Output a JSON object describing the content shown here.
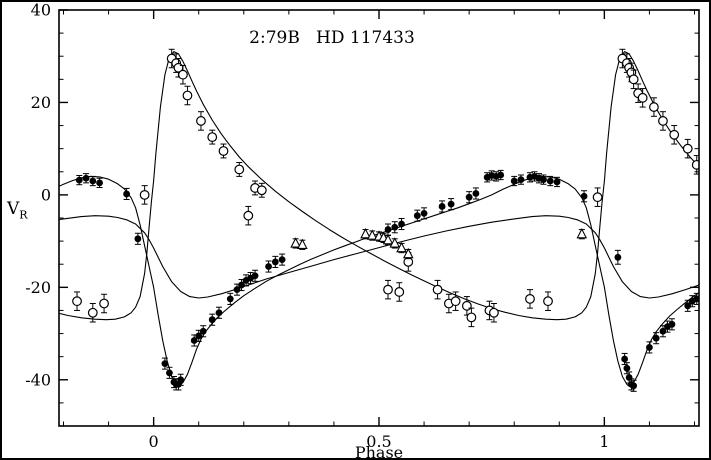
{
  "chart_data": {
    "type": "scatter",
    "title": "2:79B   HD 117433",
    "xlabel": "Phase",
    "ylabel": "V_R",
    "ylabel_main": "V",
    "ylabel_sub": "R",
    "xlim": [
      -0.21,
      1.21
    ],
    "ylim": [
      -50,
      40
    ],
    "grid": false,
    "legend": "none",
    "x_major_ticks": [
      0,
      0.5,
      1
    ],
    "x_major_labels": [
      "0",
      "0.5",
      "1"
    ],
    "x_minor_step": 0.1,
    "y_major_ticks": [
      -40,
      -20,
      0,
      20,
      40
    ],
    "y_major_labels": [
      "-40",
      "-20",
      "0",
      "20",
      "40"
    ],
    "y_minor_step": 5,
    "series": [
      {
        "name": "primary-filled-circles",
        "marker": "filled-circle",
        "points": [
          [
            -0.165,
            3.2,
            1
          ],
          [
            -0.15,
            3.6,
            1
          ],
          [
            -0.135,
            3.0,
            1
          ],
          [
            -0.12,
            2.6,
            1
          ],
          [
            -0.06,
            0.2,
            1.2
          ],
          [
            -0.035,
            -9.5,
            1.2
          ],
          [
            0.025,
            -36.5,
            1.2
          ],
          [
            0.035,
            -38.5,
            1.2
          ],
          [
            0.045,
            -40.5,
            1.2
          ],
          [
            0.05,
            -41.0,
            1.2
          ],
          [
            0.055,
            -41.0,
            1.2
          ],
          [
            0.06,
            -40.0,
            1.2
          ],
          [
            0.09,
            -31.5,
            1.2
          ],
          [
            0.1,
            -30.5,
            1.2
          ],
          [
            0.11,
            -29.5,
            1.2
          ],
          [
            0.13,
            -27.0,
            1.2
          ],
          [
            0.145,
            -25.5,
            1.2
          ],
          [
            0.17,
            -22.5,
            1.2
          ],
          [
            0.185,
            -20.5,
            1.2
          ],
          [
            0.195,
            -19.5,
            1.2
          ],
          [
            0.205,
            -18.5,
            1.2
          ],
          [
            0.215,
            -18.0,
            1.2
          ],
          [
            0.225,
            -17.5,
            1.2
          ],
          [
            0.255,
            -15.5,
            1.2
          ],
          [
            0.27,
            -14.5,
            1.2
          ],
          [
            0.285,
            -14.0,
            1.2
          ],
          [
            0.52,
            -7.5,
            1.2
          ],
          [
            0.535,
            -7.0,
            1.2
          ],
          [
            0.55,
            -6.3,
            1.2
          ],
          [
            0.585,
            -4.5,
            1.2
          ],
          [
            0.6,
            -4.0,
            1.2
          ],
          [
            0.64,
            -2.5,
            1.2
          ],
          [
            0.66,
            -2.0,
            1.2
          ],
          [
            0.7,
            -0.5,
            1.2
          ],
          [
            0.715,
            0.3,
            1.2
          ],
          [
            0.74,
            3.8,
            1
          ],
          [
            0.75,
            4.2,
            1
          ],
          [
            0.76,
            4.0,
            1
          ],
          [
            0.77,
            4.3,
            1
          ],
          [
            0.8,
            3.0,
            1
          ],
          [
            0.815,
            3.3,
            1
          ],
          [
            0.835,
            3.8,
            1
          ],
          [
            0.845,
            4.0,
            1
          ],
          [
            0.855,
            3.6,
            1
          ],
          [
            0.865,
            3.3,
            1
          ],
          [
            0.88,
            3.0,
            1
          ],
          [
            0.895,
            2.8,
            1
          ],
          [
            0.955,
            -0.3,
            1.2
          ],
          [
            1.03,
            -13.5,
            1.5
          ],
          [
            1.045,
            -35.5,
            1.2
          ],
          [
            1.05,
            -37.5,
            1.2
          ],
          [
            1.055,
            -39.5,
            1.2
          ],
          [
            1.06,
            -41.0,
            1.2
          ],
          [
            1.065,
            -41.3,
            1.2
          ],
          [
            1.1,
            -33.0,
            1.2
          ],
          [
            1.115,
            -31.0,
            1.2
          ],
          [
            1.13,
            -29.5,
            1.2
          ],
          [
            1.14,
            -28.5,
            1.2
          ],
          [
            1.15,
            -28.0,
            1.2
          ],
          [
            1.185,
            -24.0,
            1.2
          ],
          [
            1.195,
            -23.0,
            1.2
          ],
          [
            1.205,
            -22.5,
            1.2
          ]
        ]
      },
      {
        "name": "secondary-open-circles",
        "marker": "open-circle",
        "points": [
          [
            -0.17,
            -23.0,
            2
          ],
          [
            -0.135,
            -25.5,
            2
          ],
          [
            -0.11,
            -23.5,
            2
          ],
          [
            -0.02,
            0.0,
            2
          ],
          [
            0.04,
            29.5,
            2
          ],
          [
            0.05,
            28.5,
            2
          ],
          [
            0.055,
            27.5,
            2
          ],
          [
            0.065,
            26.0,
            2
          ],
          [
            0.075,
            21.5,
            2
          ],
          [
            0.105,
            16.0,
            2
          ],
          [
            0.13,
            12.5,
            1.5
          ],
          [
            0.155,
            9.5,
            1.5
          ],
          [
            0.19,
            5.5,
            1.5
          ],
          [
            0.21,
            -4.5,
            2
          ],
          [
            0.225,
            1.5,
            1.5
          ],
          [
            0.24,
            1.0,
            1.5
          ],
          [
            0.52,
            -20.5,
            2
          ],
          [
            0.545,
            -21.0,
            2
          ],
          [
            0.565,
            -14.5,
            2
          ],
          [
            0.63,
            -20.5,
            2
          ],
          [
            0.655,
            -23.5,
            2
          ],
          [
            0.67,
            -23.0,
            2
          ],
          [
            0.695,
            -24.0,
            2
          ],
          [
            0.705,
            -26.5,
            2
          ],
          [
            0.745,
            -25.0,
            2
          ],
          [
            0.755,
            -25.5,
            2
          ],
          [
            0.835,
            -22.5,
            2
          ],
          [
            0.875,
            -23.0,
            2
          ],
          [
            0.985,
            -0.5,
            2
          ],
          [
            1.04,
            29.5,
            2
          ],
          [
            1.05,
            28.5,
            2
          ],
          [
            1.055,
            27.5,
            2
          ],
          [
            1.06,
            26.5,
            2
          ],
          [
            1.065,
            25.0,
            2
          ],
          [
            1.075,
            22.0,
            2
          ],
          [
            1.085,
            21.0,
            2
          ],
          [
            1.11,
            19.0,
            2
          ],
          [
            1.13,
            16.0,
            2
          ],
          [
            1.155,
            13.0,
            2
          ],
          [
            1.185,
            10.0,
            2
          ],
          [
            1.205,
            6.5,
            2
          ]
        ]
      },
      {
        "name": "third-body-open-triangles",
        "marker": "open-triangle",
        "points": [
          [
            0.315,
            -10.5,
            1
          ],
          [
            0.33,
            -10.8,
            1
          ],
          [
            0.47,
            -8.5,
            1
          ],
          [
            0.485,
            -8.8,
            1
          ],
          [
            0.5,
            -9.0,
            1
          ],
          [
            0.51,
            -9.3,
            1
          ],
          [
            0.52,
            -9.8,
            1
          ],
          [
            0.535,
            -10.5,
            1
          ],
          [
            0.55,
            -11.5,
            1
          ],
          [
            0.565,
            -12.8,
            1
          ],
          [
            0.95,
            -8.5,
            1
          ]
        ]
      }
    ],
    "model_curves": [
      {
        "name": "primary-model",
        "period_points": [
          [
            0.0,
            -20
          ],
          [
            0.01,
            -26
          ],
          [
            0.02,
            -31.5
          ],
          [
            0.03,
            -36
          ],
          [
            0.04,
            -39.3
          ],
          [
            0.05,
            -41
          ],
          [
            0.055,
            -41.4
          ],
          [
            0.065,
            -40.6
          ],
          [
            0.075,
            -38.8
          ],
          [
            0.085,
            -36.2
          ],
          [
            0.095,
            -33.4
          ],
          [
            0.105,
            -31.2
          ],
          [
            0.115,
            -29.6
          ],
          [
            0.13,
            -27.8
          ],
          [
            0.145,
            -26.2
          ],
          [
            0.16,
            -24.9
          ],
          [
            0.18,
            -23.3
          ],
          [
            0.2,
            -21.8
          ],
          [
            0.225,
            -20.2
          ],
          [
            0.25,
            -18.7
          ],
          [
            0.275,
            -17.4
          ],
          [
            0.3,
            -16.2
          ],
          [
            0.325,
            -15.0
          ],
          [
            0.35,
            -13.9
          ],
          [
            0.375,
            -12.9
          ],
          [
            0.4,
            -11.9
          ],
          [
            0.425,
            -11.0
          ],
          [
            0.45,
            -10.1
          ],
          [
            0.475,
            -9.2
          ],
          [
            0.5,
            -8.4
          ],
          [
            0.525,
            -7.6
          ],
          [
            0.55,
            -6.8
          ],
          [
            0.575,
            -6.0
          ],
          [
            0.6,
            -5.2
          ],
          [
            0.625,
            -4.4
          ],
          [
            0.65,
            -3.6
          ],
          [
            0.675,
            -2.8
          ],
          [
            0.7,
            -1.9
          ],
          [
            0.725,
            -1.0
          ],
          [
            0.75,
            0.0
          ],
          [
            0.775,
            1.2
          ],
          [
            0.8,
            2.3
          ],
          [
            0.82,
            3.1
          ],
          [
            0.84,
            3.7
          ],
          [
            0.86,
            4.0
          ],
          [
            0.88,
            3.9
          ],
          [
            0.9,
            3.4
          ],
          [
            0.92,
            2.4
          ],
          [
            0.935,
            1.3
          ],
          [
            0.95,
            -0.6
          ],
          [
            0.96,
            -2.8
          ],
          [
            0.97,
            -6.5
          ],
          [
            0.98,
            -11.0
          ],
          [
            0.99,
            -15.5
          ]
        ]
      },
      {
        "name": "secondary-model",
        "period_points": [
          [
            0.0,
            3.0
          ],
          [
            0.005,
            9.0
          ],
          [
            0.015,
            19.0
          ],
          [
            0.025,
            26.0
          ],
          [
            0.035,
            29.8
          ],
          [
            0.045,
            31.0
          ],
          [
            0.055,
            30.5
          ],
          [
            0.065,
            28.9
          ],
          [
            0.075,
            26.8
          ],
          [
            0.085,
            24.6
          ],
          [
            0.095,
            22.5
          ],
          [
            0.11,
            19.6
          ],
          [
            0.13,
            16.2
          ],
          [
            0.15,
            13.2
          ],
          [
            0.17,
            10.6
          ],
          [
            0.19,
            8.2
          ],
          [
            0.21,
            6.1
          ],
          [
            0.24,
            3.3
          ],
          [
            0.27,
            0.8
          ],
          [
            0.3,
            -1.5
          ],
          [
            0.33,
            -3.6
          ],
          [
            0.36,
            -5.6
          ],
          [
            0.39,
            -7.5
          ],
          [
            0.42,
            -9.3
          ],
          [
            0.45,
            -11.0
          ],
          [
            0.48,
            -12.6
          ],
          [
            0.51,
            -14.2
          ],
          [
            0.54,
            -15.7
          ],
          [
            0.57,
            -17.2
          ],
          [
            0.6,
            -18.6
          ],
          [
            0.63,
            -20.0
          ],
          [
            0.66,
            -21.3
          ],
          [
            0.69,
            -22.5
          ],
          [
            0.72,
            -23.6
          ],
          [
            0.75,
            -24.6
          ],
          [
            0.78,
            -25.4
          ],
          [
            0.81,
            -26.1
          ],
          [
            0.84,
            -26.6
          ],
          [
            0.87,
            -26.9
          ],
          [
            0.895,
            -27.0
          ],
          [
            0.915,
            -26.9
          ],
          [
            0.935,
            -26.4
          ],
          [
            0.95,
            -25.5
          ],
          [
            0.96,
            -24.3
          ],
          [
            0.97,
            -22.0
          ],
          [
            0.98,
            -17.0
          ],
          [
            0.985,
            -12.5
          ],
          [
            0.99,
            -7.0
          ],
          [
            0.995,
            -1.5
          ]
        ]
      },
      {
        "name": "third-body-model",
        "period_points": [
          [
            0.0,
            -11.5
          ],
          [
            0.02,
            -15.5
          ],
          [
            0.04,
            -18.8
          ],
          [
            0.06,
            -20.9
          ],
          [
            0.08,
            -22.0
          ],
          [
            0.1,
            -22.3
          ],
          [
            0.12,
            -22.1
          ],
          [
            0.15,
            -21.4
          ],
          [
            0.18,
            -20.5
          ],
          [
            0.21,
            -19.5
          ],
          [
            0.25,
            -18.2
          ],
          [
            0.3,
            -16.8
          ],
          [
            0.35,
            -15.4
          ],
          [
            0.4,
            -14.0
          ],
          [
            0.45,
            -12.7
          ],
          [
            0.5,
            -11.4
          ],
          [
            0.55,
            -10.1
          ],
          [
            0.6,
            -8.9
          ],
          [
            0.65,
            -7.8
          ],
          [
            0.7,
            -6.8
          ],
          [
            0.75,
            -5.9
          ],
          [
            0.8,
            -5.2
          ],
          [
            0.84,
            -4.7
          ],
          [
            0.87,
            -4.5
          ],
          [
            0.9,
            -4.6
          ],
          [
            0.92,
            -4.9
          ],
          [
            0.94,
            -5.4
          ],
          [
            0.96,
            -6.3
          ],
          [
            0.98,
            -8.2
          ],
          [
            0.99,
            -9.7
          ]
        ]
      }
    ],
    "colors": {
      "foreground": "#000000",
      "background": "#ffffff"
    }
  }
}
